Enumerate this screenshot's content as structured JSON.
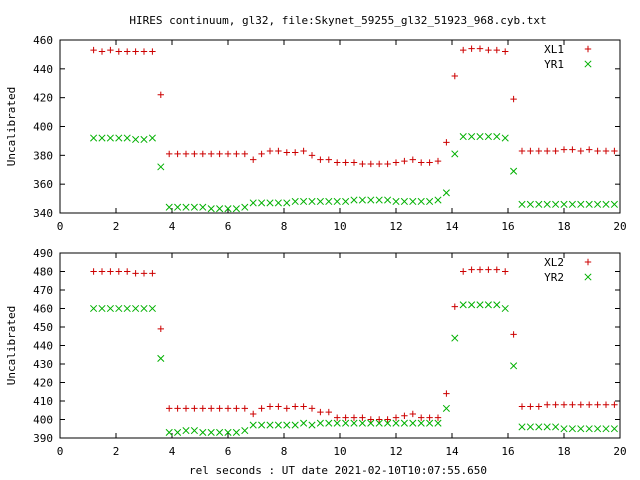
{
  "title": "HIRES continuum, gl32, file:Skynet_59255_gl32_51923_968.cyb.txt",
  "xlabel": "rel seconds : UT date 2021-02-10T10:07:55.650",
  "chart_data": [
    {
      "type": "scatter",
      "ylabel": "Uncalibrated",
      "xlim": [
        0,
        20
      ],
      "ylim": [
        340,
        460
      ],
      "xticks": [
        0,
        2,
        4,
        6,
        8,
        10,
        12,
        14,
        16,
        18,
        20
      ],
      "yticks": [
        340,
        360,
        380,
        400,
        420,
        440,
        460
      ],
      "grid": false,
      "legend_position": "top-right",
      "x": [
        1.2,
        1.5,
        1.8,
        2.1,
        2.4,
        2.7,
        3.0,
        3.3,
        3.6,
        3.9,
        4.2,
        4.5,
        4.8,
        5.1,
        5.4,
        5.7,
        6.0,
        6.3,
        6.6,
        6.9,
        7.2,
        7.5,
        7.8,
        8.1,
        8.4,
        8.7,
        9.0,
        9.3,
        9.6,
        9.9,
        10.2,
        10.5,
        10.8,
        11.1,
        11.4,
        11.7,
        12.0,
        12.3,
        12.6,
        12.9,
        13.2,
        13.5,
        13.8,
        14.1,
        14.4,
        14.7,
        15.0,
        15.3,
        15.6,
        15.9,
        16.2,
        16.5,
        16.8,
        17.1,
        17.4,
        17.7,
        18.0,
        18.3,
        18.6,
        18.9,
        19.2,
        19.5,
        19.8
      ],
      "series": [
        {
          "name": "XL1",
          "color": "#cc0000",
          "marker": "plus",
          "values": [
            453,
            452,
            453,
            452,
            452,
            452,
            452,
            452,
            422,
            381,
            381,
            381,
            381,
            381,
            381,
            381,
            381,
            381,
            381,
            377,
            381,
            383,
            383,
            382,
            382,
            383,
            380,
            377,
            377,
            375,
            375,
            375,
            374,
            374,
            374,
            374,
            375,
            376,
            377,
            375,
            375,
            376,
            389,
            435,
            453,
            454,
            454,
            453,
            453,
            452,
            419,
            383,
            383,
            383,
            383,
            383,
            384,
            384,
            383,
            384,
            383,
            383,
            383
          ]
        },
        {
          "name": "YR1",
          "color": "#00b000",
          "marker": "cross",
          "values": [
            392,
            392,
            392,
            392,
            392,
            391,
            391,
            392,
            372,
            344,
            344,
            344,
            344,
            344,
            343,
            343,
            343,
            343,
            344,
            347,
            347,
            347,
            347,
            347,
            348,
            348,
            348,
            348,
            348,
            348,
            348,
            349,
            349,
            349,
            349,
            349,
            348,
            348,
            348,
            348,
            348,
            349,
            354,
            381,
            393,
            393,
            393,
            393,
            393,
            392,
            369,
            346,
            346,
            346,
            346,
            346,
            346,
            346,
            346,
            346,
            346,
            346,
            346
          ]
        }
      ]
    },
    {
      "type": "scatter",
      "ylabel": "Uncalibrated",
      "xlim": [
        0,
        20
      ],
      "ylim": [
        390,
        490
      ],
      "xticks": [
        0,
        2,
        4,
        6,
        8,
        10,
        12,
        14,
        16,
        18,
        20
      ],
      "yticks": [
        390,
        400,
        410,
        420,
        430,
        440,
        450,
        460,
        470,
        480,
        490
      ],
      "grid": false,
      "legend_position": "top-right",
      "x": [
        1.2,
        1.5,
        1.8,
        2.1,
        2.4,
        2.7,
        3.0,
        3.3,
        3.6,
        3.9,
        4.2,
        4.5,
        4.8,
        5.1,
        5.4,
        5.7,
        6.0,
        6.3,
        6.6,
        6.9,
        7.2,
        7.5,
        7.8,
        8.1,
        8.4,
        8.7,
        9.0,
        9.3,
        9.6,
        9.9,
        10.2,
        10.5,
        10.8,
        11.1,
        11.4,
        11.7,
        12.0,
        12.3,
        12.6,
        12.9,
        13.2,
        13.5,
        13.8,
        14.1,
        14.4,
        14.7,
        15.0,
        15.3,
        15.6,
        15.9,
        16.2,
        16.5,
        16.8,
        17.1,
        17.4,
        17.7,
        18.0,
        18.3,
        18.6,
        18.9,
        19.2,
        19.5,
        19.8
      ],
      "series": [
        {
          "name": "XL2",
          "color": "#cc0000",
          "marker": "plus",
          "values": [
            480,
            480,
            480,
            480,
            480,
            479,
            479,
            479,
            449,
            406,
            406,
            406,
            406,
            406,
            406,
            406,
            406,
            406,
            406,
            403,
            406,
            407,
            407,
            406,
            407,
            407,
            406,
            404,
            404,
            401,
            401,
            401,
            401,
            400,
            400,
            400,
            401,
            402,
            403,
            401,
            401,
            401,
            414,
            461,
            480,
            481,
            481,
            481,
            481,
            480,
            446,
            407,
            407,
            407,
            408,
            408,
            408,
            408,
            408,
            408,
            408,
            408,
            408
          ]
        },
        {
          "name": "YR2",
          "color": "#00b000",
          "marker": "cross",
          "values": [
            460,
            460,
            460,
            460,
            460,
            460,
            460,
            460,
            433,
            393,
            393,
            394,
            394,
            393,
            393,
            393,
            393,
            393,
            394,
            397,
            397,
            397,
            397,
            397,
            397,
            398,
            397,
            398,
            398,
            398,
            398,
            398,
            398,
            398,
            398,
            398,
            398,
            398,
            398,
            398,
            398,
            398,
            406,
            444,
            462,
            462,
            462,
            462,
            462,
            460,
            429,
            396,
            396,
            396,
            396,
            396,
            395,
            395,
            395,
            395,
            395,
            395,
            395
          ]
        }
      ]
    }
  ]
}
